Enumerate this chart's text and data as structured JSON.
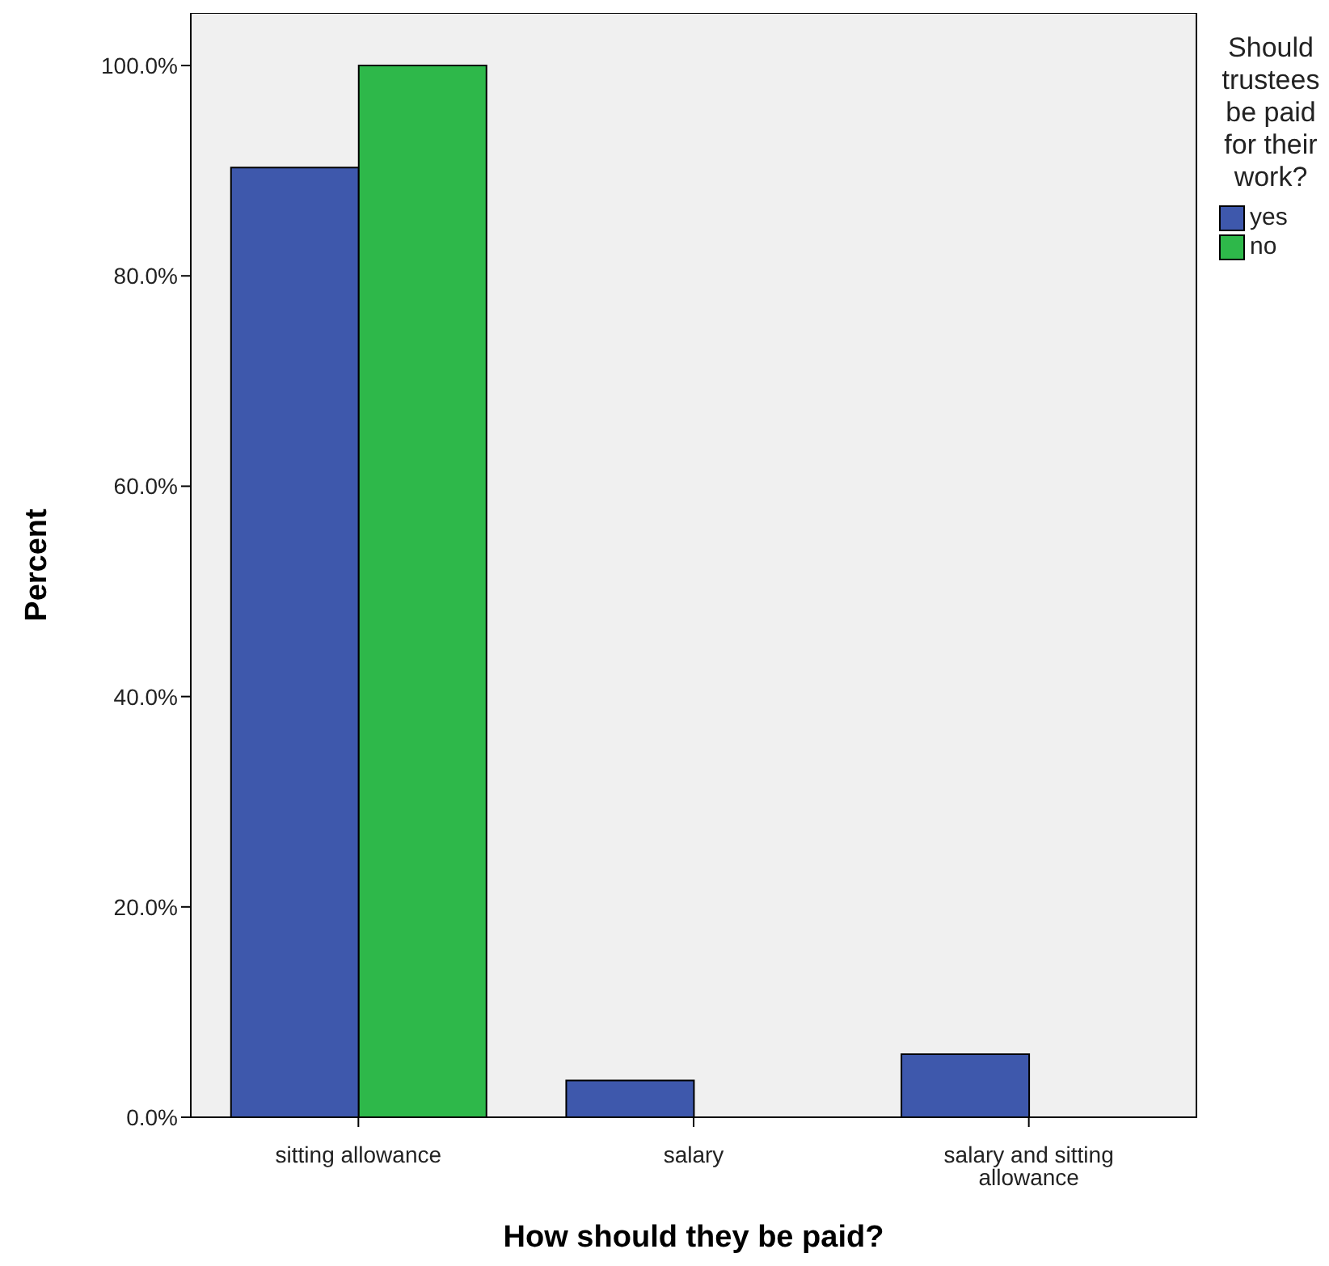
{
  "chart_data": {
    "type": "bar",
    "xlabel": "How should they be paid?",
    "ylabel": "Percent",
    "legend_title": "Should trustees be paid for their work?",
    "categories": [
      "sitting allowance",
      "salary",
      "salary and sitting allowance"
    ],
    "series": [
      {
        "name": "yes",
        "color": "#3e58ac",
        "values": [
          90.3,
          3.5,
          6.0
        ]
      },
      {
        "name": "no",
        "color": "#2eb84a",
        "values": [
          100,
          0,
          0
        ]
      }
    ],
    "ylim": [
      0,
      105
    ],
    "yticks": [
      {
        "value": 0,
        "label": "0.0%"
      },
      {
        "value": 20,
        "label": "20.0%"
      },
      {
        "value": 40,
        "label": "40.0%"
      },
      {
        "value": 60,
        "label": "60.0%"
      },
      {
        "value": 80,
        "label": "80.0%"
      },
      {
        "value": 100,
        "label": "100.0%"
      }
    ],
    "legend": "top right"
  }
}
